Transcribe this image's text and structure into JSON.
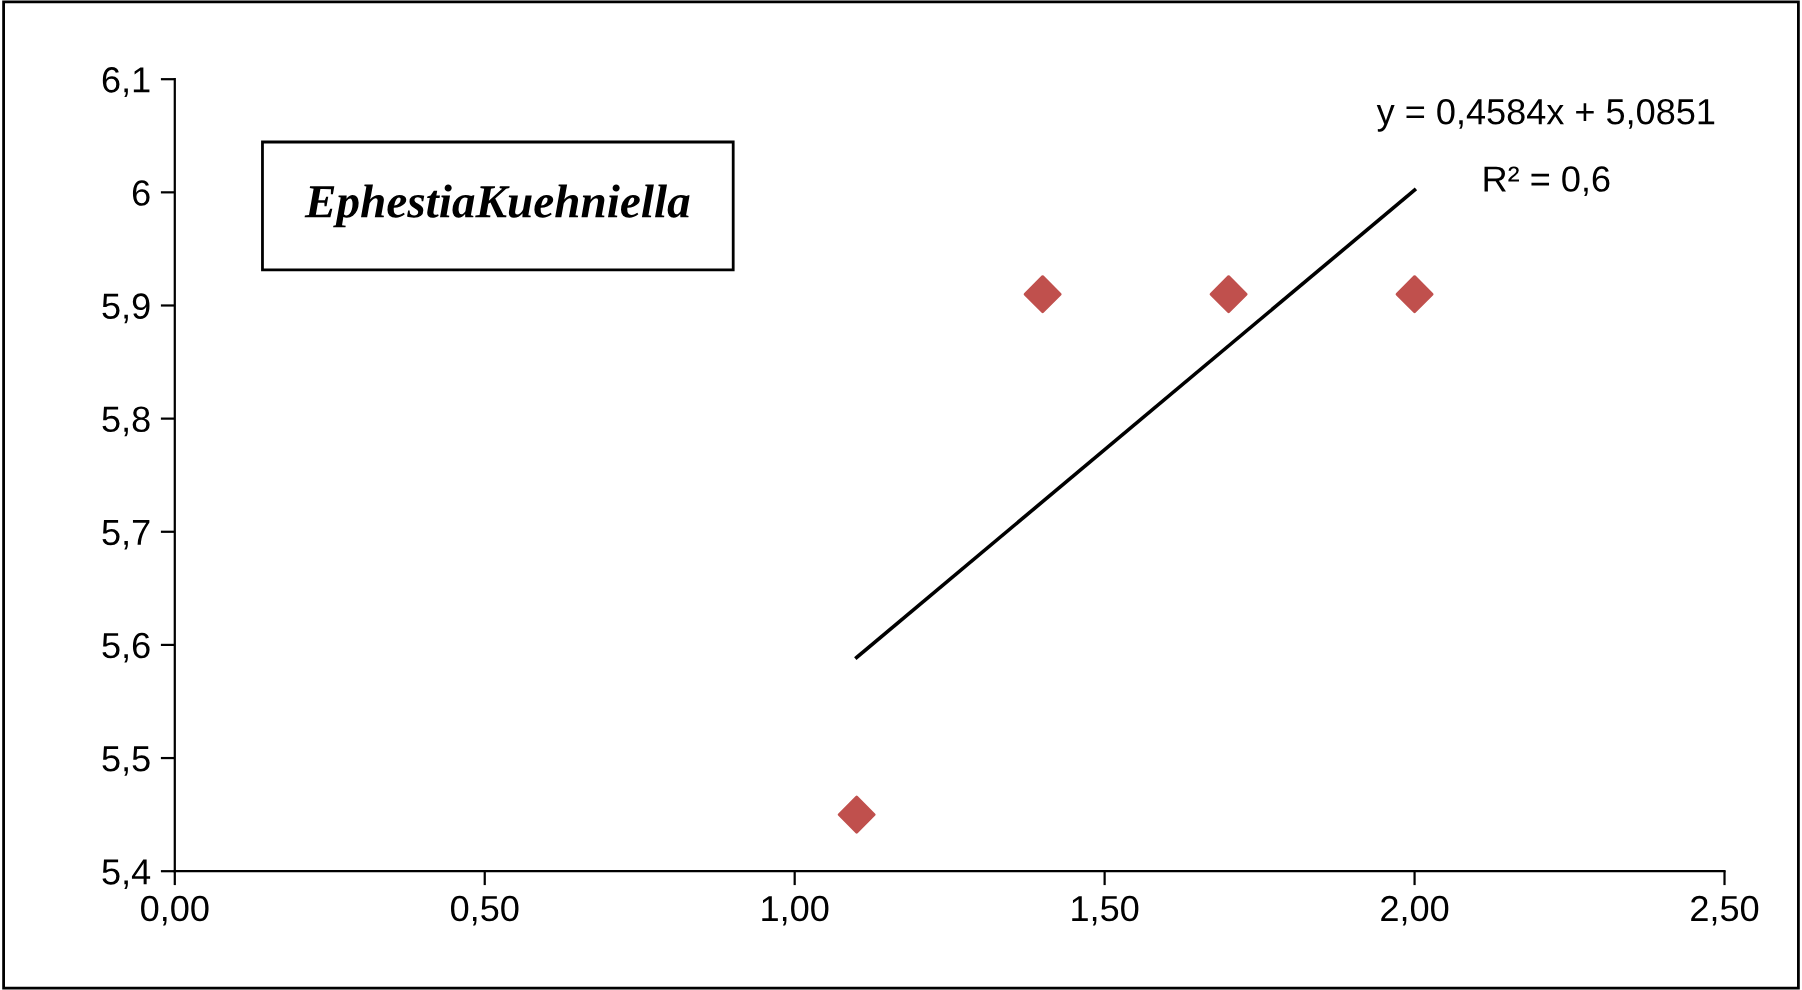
{
  "chart_data": {
    "type": "scatter",
    "title": "EphestiaKuehniella",
    "series": [
      {
        "color": "#c0504d",
        "marker": "diamond",
        "x": [
          1.1,
          1.4,
          1.7,
          2.0
        ],
        "values": [
          5.45,
          5.91,
          5.91,
          5.91
        ]
      },
      {
        "type": "line",
        "color": "#000000",
        "marker": "none",
        "line_style": "solid",
        "x": [
          1.1,
          2.0
        ],
        "values": [
          5.589,
          6.002
        ]
      }
    ],
    "annotations": [
      "y = 0,4584x + 5,0851",
      "R² = 0,6"
    ],
    "xlim": [
      0,
      2.5
    ],
    "xticks": [
      {
        "value": 0,
        "label": "0,00"
      },
      {
        "value": 0.5,
        "label": "0,50"
      },
      {
        "value": 1,
        "label": "1,00"
      },
      {
        "value": 1.5,
        "label": "1,50"
      },
      {
        "value": 2,
        "label": "2,00"
      },
      {
        "value": 2.5,
        "label": "2,50"
      }
    ],
    "ylim": [
      5.4,
      6.1
    ],
    "yticks": [
      {
        "value": 5.4,
        "label": "5,4"
      },
      {
        "value": 5.5,
        "label": "5,5"
      },
      {
        "value": 5.6,
        "label": "5,6"
      },
      {
        "value": 5.7,
        "label": "5,7"
      },
      {
        "value": 5.8,
        "label": "5,8"
      },
      {
        "value": 5.9,
        "label": "5,9"
      },
      {
        "value": 6,
        "label": "6"
      },
      {
        "value": 6.1,
        "label": "6,1"
      }
    ],
    "grid": false
  }
}
